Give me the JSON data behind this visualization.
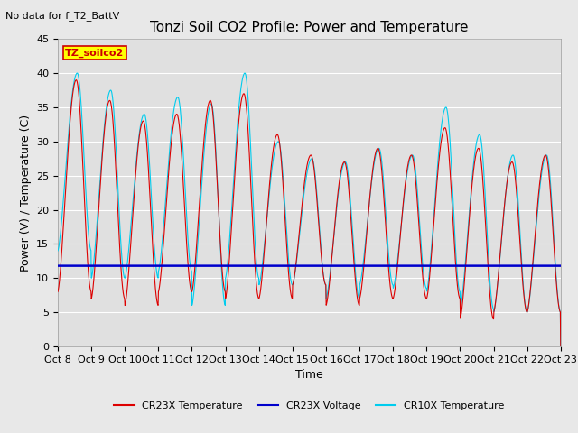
{
  "title": "Tonzi Soil CO2 Profile: Power and Temperature",
  "subtitle": "No data for f_T2_BattV",
  "ylabel": "Power (V) / Temperature (C)",
  "xlabel": "Time",
  "ylim": [
    0,
    45
  ],
  "yticks": [
    0,
    5,
    10,
    15,
    20,
    25,
    30,
    35,
    40,
    45
  ],
  "xtick_labels": [
    "Oct 8",
    "Oct 9",
    "Oct 10",
    "Oct 11",
    "Oct 12",
    "Oct 13",
    "Oct 14",
    "Oct 15",
    "Oct 16",
    "Oct 17",
    "Oct 18",
    "Oct 19",
    "Oct 20",
    "Oct 21",
    "Oct 22",
    "Oct 23"
  ],
  "legend_box_label": "TZ_soilco2",
  "legend_box_color": "#ffff00",
  "legend_box_border": "#cc0000",
  "cr23x_temp_color": "#dd0000",
  "cr23x_voltage_color": "#0000cc",
  "cr10x_temp_color": "#00ccee",
  "voltage_value": 11.8,
  "background_color": "#e8e8e8",
  "plot_bg_color": "#e0e0e0",
  "grid_color": "#ffffff",
  "title_fontsize": 11,
  "axis_fontsize": 9,
  "tick_fontsize": 8,
  "cr23x_peaks": [
    39,
    36,
    33,
    34,
    36,
    37,
    31,
    28,
    27,
    29,
    28,
    32,
    29,
    27,
    28
  ],
  "cr23x_mins": [
    8,
    7,
    6,
    8,
    8,
    7,
    7,
    9,
    6,
    7,
    7,
    7,
    4,
    5,
    5
  ],
  "cr10x_peaks": [
    40,
    37.5,
    34,
    36.5,
    35.5,
    40,
    30,
    27.5,
    27,
    29,
    28,
    35,
    31,
    28,
    28
  ],
  "cr10x_mins": [
    14,
    10,
    10,
    11,
    6,
    10,
    9,
    9,
    7,
    9,
    8.5,
    8,
    5.5,
    5,
    5
  ],
  "n_days": 15
}
